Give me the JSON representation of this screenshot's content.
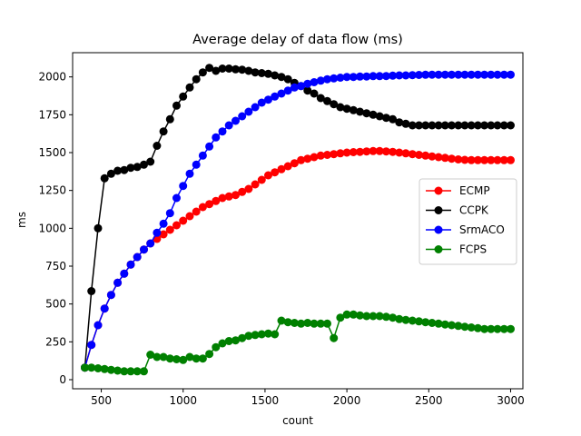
{
  "chart_data": {
    "type": "line",
    "title": "Average delay of data flow (ms)",
    "xlabel": "count",
    "ylabel": "ms",
    "xlim": [
      325,
      3075
    ],
    "ylim": [
      -60,
      2160
    ],
    "xticks": [
      500,
      1000,
      1500,
      2000,
      2500,
      3000
    ],
    "yticks": [
      0,
      250,
      500,
      750,
      1000,
      1250,
      1500,
      1750,
      2000
    ],
    "grid": false,
    "legend_position": "center-right",
    "x": [
      400,
      440,
      480,
      520,
      560,
      600,
      640,
      680,
      720,
      760,
      800,
      840,
      880,
      920,
      960,
      1000,
      1040,
      1080,
      1120,
      1160,
      1200,
      1240,
      1280,
      1320,
      1360,
      1400,
      1440,
      1480,
      1520,
      1560,
      1600,
      1640,
      1680,
      1720,
      1760,
      1800,
      1840,
      1880,
      1920,
      1960,
      2000,
      2040,
      2080,
      2120,
      2160,
      2200,
      2240,
      2280,
      2320,
      2360,
      2400,
      2440,
      2480,
      2520,
      2560,
      2600,
      2640,
      2680,
      2720,
      2760,
      2800,
      2840,
      2880,
      2920,
      2960,
      3000
    ],
    "series": [
      {
        "name": "ECMP",
        "color": "#ff0000",
        "values": [
          80,
          230,
          360,
          470,
          560,
          640,
          700,
          760,
          810,
          860,
          900,
          930,
          960,
          990,
          1020,
          1050,
          1080,
          1110,
          1140,
          1160,
          1180,
          1200,
          1210,
          1220,
          1240,
          1260,
          1290,
          1320,
          1350,
          1370,
          1390,
          1410,
          1430,
          1450,
          1460,
          1470,
          1480,
          1485,
          1490,
          1495,
          1500,
          1503,
          1505,
          1508,
          1510,
          1510,
          1508,
          1505,
          1500,
          1495,
          1490,
          1485,
          1480,
          1475,
          1470,
          1465,
          1460,
          1455,
          1452,
          1450,
          1450,
          1450,
          1450,
          1450,
          1450,
          1450
        ]
      },
      {
        "name": "CCPK",
        "color": "#000000",
        "values": [
          80,
          585,
          1000,
          1330,
          1360,
          1380,
          1385,
          1400,
          1405,
          1420,
          1440,
          1545,
          1640,
          1720,
          1810,
          1870,
          1930,
          1985,
          2030,
          2060,
          2040,
          2055,
          2055,
          2050,
          2048,
          2040,
          2030,
          2025,
          2020,
          2010,
          2000,
          1985,
          1960,
          1940,
          1910,
          1890,
          1860,
          1840,
          1820,
          1800,
          1790,
          1780,
          1770,
          1760,
          1750,
          1740,
          1730,
          1720,
          1700,
          1690,
          1680,
          1680,
          1680,
          1680,
          1680,
          1680,
          1680,
          1680,
          1680,
          1680,
          1680,
          1680,
          1680,
          1680,
          1680,
          1680
        ]
      },
      {
        "name": "SrmACO",
        "color": "#0000ff",
        "values": [
          80,
          230,
          360,
          470,
          560,
          640,
          700,
          760,
          810,
          860,
          900,
          970,
          1030,
          1100,
          1200,
          1280,
          1360,
          1420,
          1480,
          1540,
          1600,
          1640,
          1680,
          1710,
          1740,
          1770,
          1800,
          1830,
          1850,
          1870,
          1890,
          1910,
          1930,
          1940,
          1955,
          1965,
          1975,
          1985,
          1990,
          1995,
          2000,
          2000,
          2002,
          2003,
          2005,
          2005,
          2006,
          2008,
          2010,
          2010,
          2012,
          2013,
          2014,
          2015,
          2015,
          2015,
          2015,
          2015,
          2015,
          2015,
          2015,
          2015,
          2015,
          2015,
          2015,
          2015
        ]
      },
      {
        "name": "FCPS",
        "color": "#008000",
        "values": [
          80,
          80,
          75,
          70,
          65,
          60,
          55,
          55,
          55,
          55,
          165,
          150,
          150,
          140,
          135,
          130,
          150,
          140,
          140,
          170,
          215,
          240,
          255,
          260,
          275,
          290,
          295,
          300,
          305,
          300,
          390,
          380,
          375,
          370,
          375,
          370,
          370,
          370,
          275,
          410,
          430,
          430,
          425,
          420,
          420,
          420,
          415,
          410,
          400,
          395,
          390,
          385,
          380,
          375,
          370,
          365,
          360,
          355,
          350,
          345,
          340,
          335,
          335,
          335,
          335,
          335
        ]
      }
    ]
  }
}
